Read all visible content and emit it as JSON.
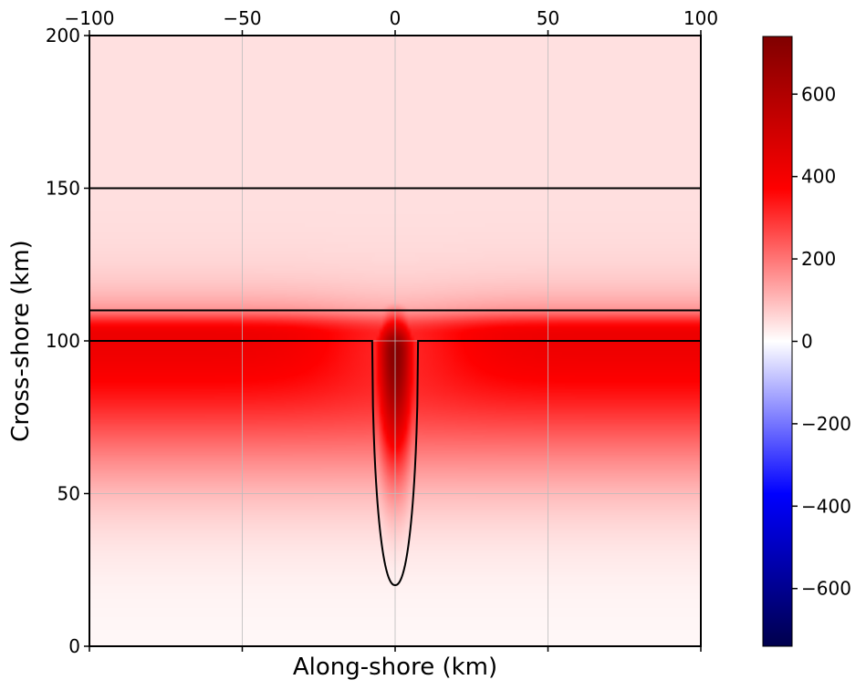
{
  "chart_data": {
    "type": "heatmap",
    "xlabel": "Along-shore (km)",
    "ylabel": "Cross-shore (km)",
    "xlim": [
      -100,
      100
    ],
    "ylim": [
      0,
      200
    ],
    "x_ticks": [
      "−100",
      "−50",
      "0",
      "50",
      "100"
    ],
    "x_tick_values": [
      -100,
      -50,
      0,
      50,
      100
    ],
    "y_ticks": [
      "0",
      "50",
      "100",
      "150",
      "200"
    ],
    "y_tick_values": [
      0,
      50,
      100,
      150,
      200
    ],
    "x_tick_position": "top",
    "grid": true,
    "colorbar": {
      "cmap": "seismic",
      "vmin": -740,
      "vmax": 740,
      "ticks": [
        "−600",
        "−400",
        "−200",
        "0",
        "200",
        "400",
        "600"
      ],
      "tick_values": [
        -600,
        -400,
        -200,
        0,
        200,
        400,
        600
      ],
      "position": "right"
    },
    "contours": [
      {
        "type": "horizontal",
        "y": 150
      },
      {
        "type": "horizontal",
        "y": 110
      },
      {
        "type": "coastline-canyon",
        "y": 100,
        "canyon_half_width": 7.5,
        "canyon_bottom_y": 20
      }
    ],
    "field": {
      "description_values": {
        "shelf_peak": 420,
        "shelf_peak_y": 102,
        "canyon_peak": 720,
        "canyon_peak_y": 97,
        "offshore_background": 45,
        "inshore_background": 10
      }
    }
  }
}
